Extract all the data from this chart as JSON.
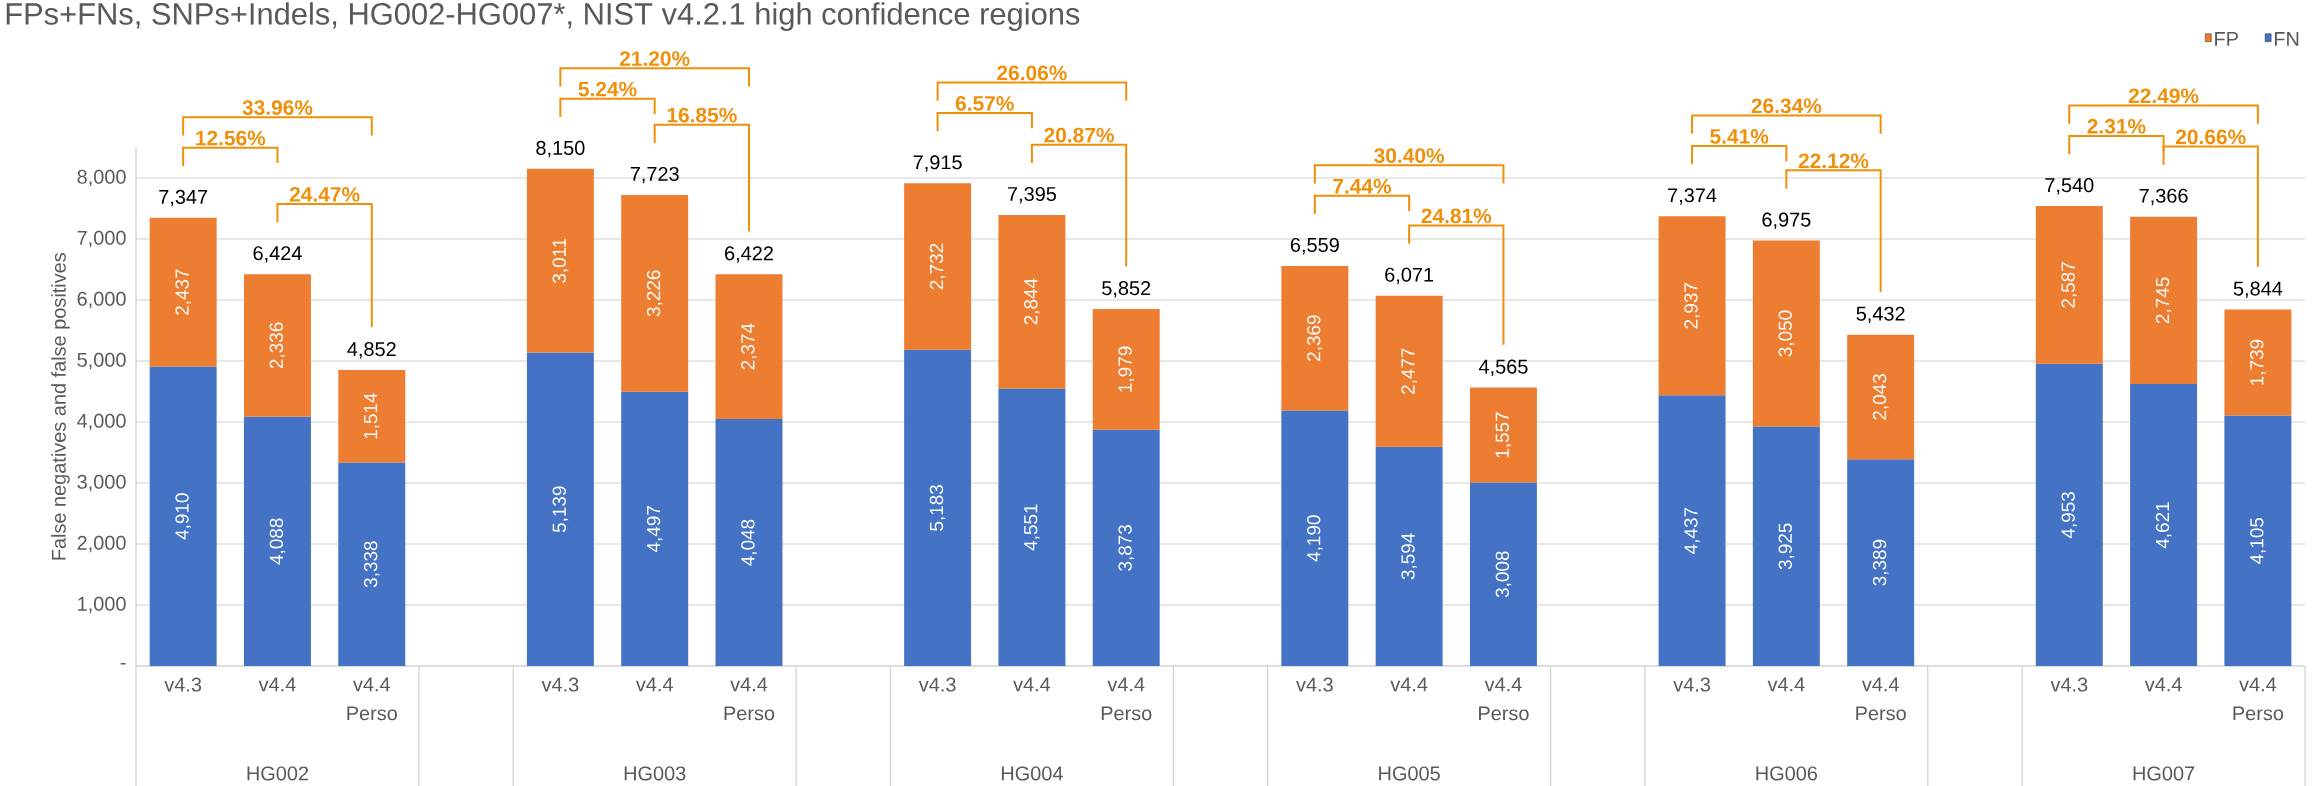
{
  "chart_data": {
    "type": "bar",
    "stacked": true,
    "title": "FPs+FNs, SNPs+Indels, HG002-HG007*, NIST v4.2.1 high confidence regions",
    "ylabel": "False negatives and false positives",
    "categories": [
      "v4.3",
      "v4.4",
      "v4.4 Perso",
      null,
      "v4.3",
      "v4.4",
      "v4.4 Perso",
      null,
      "v4.3",
      "v4.4",
      "v4.4 Perso",
      null,
      "v4.3",
      "v4.4",
      "v4.4 Perso",
      null,
      "v4.3",
      "v4.4",
      "v4.4 Perso",
      null,
      "v4.3",
      "v4.4",
      "v4.4 Perso"
    ],
    "series": [
      {
        "name": "FN",
        "color": "#4472c4",
        "values": [
          4910,
          4088,
          3338,
          null,
          5139,
          4497,
          4048,
          null,
          5183,
          4551,
          3873,
          null,
          4190,
          3594,
          3008,
          null,
          4437,
          3925,
          3389,
          null,
          4953,
          4621,
          4105
        ],
        "value_labels": [
          "4,910",
          "4,088",
          "3,338",
          null,
          "5,139",
          "4,497",
          "4,048",
          null,
          "5,183",
          "4,551",
          "3,873",
          null,
          "4,190",
          "3,594",
          "3,008",
          null,
          "4,437",
          "3,925",
          "3,389",
          null,
          "4,953",
          "4,621",
          "4,105"
        ]
      },
      {
        "name": "FP",
        "color": "#ed7d31",
        "values": [
          2437,
          2336,
          1514,
          null,
          3011,
          3226,
          2374,
          null,
          2732,
          2844,
          1979,
          null,
          2369,
          2477,
          1557,
          null,
          2937,
          3050,
          2043,
          null,
          2587,
          2745,
          1739
        ],
        "value_labels": [
          "2,437",
          "2,336",
          "1,514",
          null,
          "3,011",
          "3,226",
          "2,374",
          null,
          "2,732",
          "2,844",
          "1,979",
          null,
          "2,369",
          "2,477",
          "1,557",
          null,
          "2,937",
          "3,050",
          "2,043",
          null,
          "2,587",
          "2,745",
          "1,739"
        ]
      }
    ],
    "totals": [
      "7,347",
      "6,424",
      "4,852",
      null,
      "8,150",
      "7,723",
      "6,422",
      null,
      "7,915",
      "7,395",
      "5,852",
      null,
      "6,559",
      "6,071",
      "4,565",
      null,
      "7,374",
      "6,975",
      "5,432",
      null,
      "7,540",
      "7,366",
      "5,844"
    ],
    "ylim": [
      0,
      8500
    ],
    "yticks": [
      {
        "value": 0,
        "label": "-"
      },
      {
        "value": 1000,
        "label": "1,000"
      },
      {
        "value": 2000,
        "label": "2,000"
      },
      {
        "value": 3000,
        "label": "3,000"
      },
      {
        "value": 4000,
        "label": "4,000"
      },
      {
        "value": 5000,
        "label": "5,000"
      },
      {
        "value": 6000,
        "label": "6,000"
      },
      {
        "value": 7000,
        "label": "7,000"
      },
      {
        "value": 8000,
        "label": "8,000"
      }
    ],
    "grid": "y",
    "legend": "top right",
    "annotations": [
      "HG002",
      "HG003",
      "HG004",
      "HG005",
      "HG006",
      "HG007",
      "33.96%",
      "12.56%",
      "24.47%",
      "21.20%",
      "5.24%",
      "16.85%",
      "26.06%",
      "6.57%",
      "20.87%",
      "30.40%",
      "7.44%",
      "24.81%",
      "26.34%",
      "5.41%",
      "22.12%",
      "22.49%",
      "2.31%",
      "20.66%"
    ]
  }
}
